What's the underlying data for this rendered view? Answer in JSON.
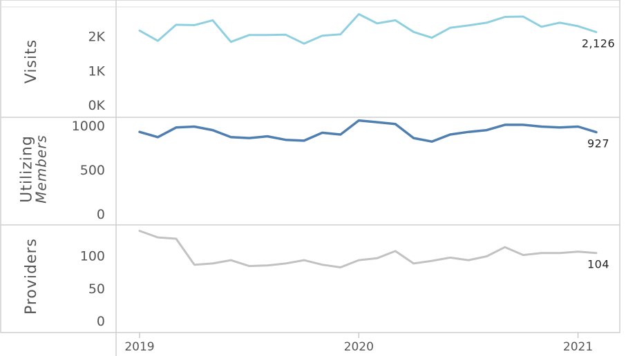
{
  "chart_data": {
    "type": "line",
    "x": [
      "2019-01",
      "2019-02",
      "2019-03",
      "2019-04",
      "2019-05",
      "2019-06",
      "2019-07",
      "2019-08",
      "2019-09",
      "2019-10",
      "2019-11",
      "2019-12",
      "2020-01",
      "2020-02",
      "2020-03",
      "2020-04",
      "2020-05",
      "2020-06",
      "2020-07",
      "2020-08",
      "2020-09",
      "2020-10",
      "2020-11",
      "2020-12",
      "2021-01",
      "2021-02"
    ],
    "x_tick_labels": [
      "2019",
      "2020",
      "2021"
    ],
    "x_ticks": [
      "2019-01",
      "2020-01",
      "2021-01"
    ],
    "panels": [
      {
        "ylabel": "Visits",
        "ylim": [
          0,
          2700
        ],
        "y_ticks": [
          0,
          1000,
          2000
        ],
        "y_tick_labels": [
          "0K",
          "1K",
          "2K"
        ],
        "color": "#8fd0e0",
        "end_label": "2,126",
        "values": [
          2170,
          1870,
          2340,
          2330,
          2470,
          1840,
          2040,
          2040,
          2050,
          1790,
          2020,
          2060,
          2650,
          2380,
          2470,
          2130,
          1960,
          2250,
          2320,
          2400,
          2570,
          2580,
          2280,
          2400,
          2300,
          2126
        ]
      },
      {
        "ylabel": "Utilizing Members",
        "ylim": [
          0,
          1080
        ],
        "y_ticks": [
          0,
          500,
          1000
        ],
        "y_tick_labels": [
          "0",
          "500",
          "1000"
        ],
        "color": "#4f7fb0",
        "end_label": "927",
        "values": [
          930,
          870,
          980,
          990,
          950,
          870,
          860,
          880,
          840,
          830,
          920,
          900,
          1060,
          1040,
          1020,
          860,
          820,
          900,
          930,
          950,
          1010,
          1010,
          990,
          980,
          990,
          927
        ]
      },
      {
        "ylabel": "Providers",
        "ylim": [
          0,
          145
        ],
        "y_ticks": [
          0,
          50,
          100
        ],
        "y_tick_labels": [
          "0",
          "50",
          "100"
        ],
        "color": "#c2c2c2",
        "end_label": "104",
        "values": [
          138,
          128,
          126,
          86,
          88,
          93,
          84,
          85,
          88,
          93,
          86,
          82,
          93,
          96,
          107,
          88,
          92,
          97,
          93,
          99,
          113,
          101,
          104,
          104,
          106,
          104
        ]
      }
    ]
  }
}
